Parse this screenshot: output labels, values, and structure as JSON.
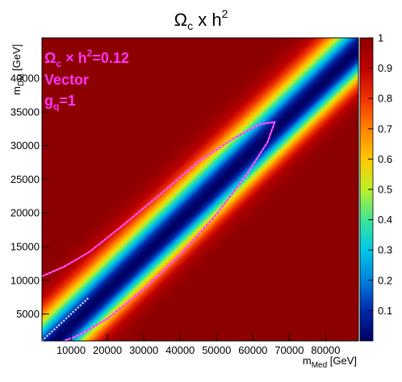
{
  "chart_data": {
    "type": "heatmap",
    "title": {
      "main": "Ω",
      "main_sub": "c",
      "rest": " x h",
      "rest_sup": "2"
    },
    "xlabel": {
      "main": "m",
      "sub": "Med",
      "unit": " [GeV]"
    },
    "ylabel": {
      "main": "m",
      "sub": "DM",
      "unit": " [GeV]"
    },
    "xlim": [
      2000,
      89000
    ],
    "ylim": [
      1000,
      46000
    ],
    "zlim": [
      0,
      1
    ],
    "x_ticks": [
      10000,
      20000,
      30000,
      40000,
      50000,
      60000,
      70000,
      80000
    ],
    "x_tick_labels": [
      "10000",
      "20000",
      "30000",
      "40000",
      "50000",
      "60000",
      "70000",
      "80000"
    ],
    "y_ticks": [
      5000,
      10000,
      15000,
      20000,
      25000,
      30000,
      35000,
      40000
    ],
    "y_tick_labels": [
      "5000",
      "10000",
      "15000",
      "20000",
      "25000",
      "30000",
      "35000",
      "40000"
    ],
    "z_ticks": [
      0.1,
      0.2,
      0.3,
      0.4,
      0.5,
      0.6,
      0.7,
      0.8,
      0.9,
      1
    ],
    "z_tick_labels": [
      "0.1",
      "0.2",
      "0.3",
      "0.4",
      "0.5",
      "0.6",
      "0.7",
      "0.8",
      "0.9",
      "1"
    ],
    "colormap": "rainbow (dark blue = 0 → dark red = 1)",
    "annotations": {
      "line1": {
        "main": "Ω",
        "sub": "c",
        "mid": " × h",
        "sup": "2",
        "tail": "=0.12"
      },
      "line2": "Vector",
      "line3": {
        "main": "g",
        "sub": "q",
        "tail": "=1"
      },
      "color": "#ff33ff"
    },
    "contour_0_12": {
      "color": "#ff33ff",
      "upper_branch": [
        [
          2000,
          10600
        ],
        [
          8000,
          12000
        ],
        [
          15000,
          14200
        ],
        [
          25000,
          18500
        ],
        [
          35000,
          23000
        ],
        [
          45000,
          27600
        ],
        [
          55000,
          31200
        ],
        [
          62000,
          33200
        ],
        [
          66000,
          33500
        ]
      ],
      "lower_branch": [
        [
          66000,
          33500
        ],
        [
          64000,
          30500
        ],
        [
          58000,
          25500
        ],
        [
          50000,
          19800
        ],
        [
          40000,
          13800
        ],
        [
          30000,
          8700
        ],
        [
          20000,
          4300
        ],
        [
          12000,
          1800
        ],
        [
          8000,
          1000
        ]
      ]
    },
    "resonance_line": {
      "color": "#ffffff",
      "points": [
        [
          2000,
          1000
        ],
        [
          15000,
          7500
        ]
      ]
    },
    "colormap_model": {
      "valley": "value minimum along the line m_DM ≈ 0.52·m_Med − 2000",
      "left_scale_GeV": 5500,
      "right_scale_GeV": 4500
    }
  }
}
